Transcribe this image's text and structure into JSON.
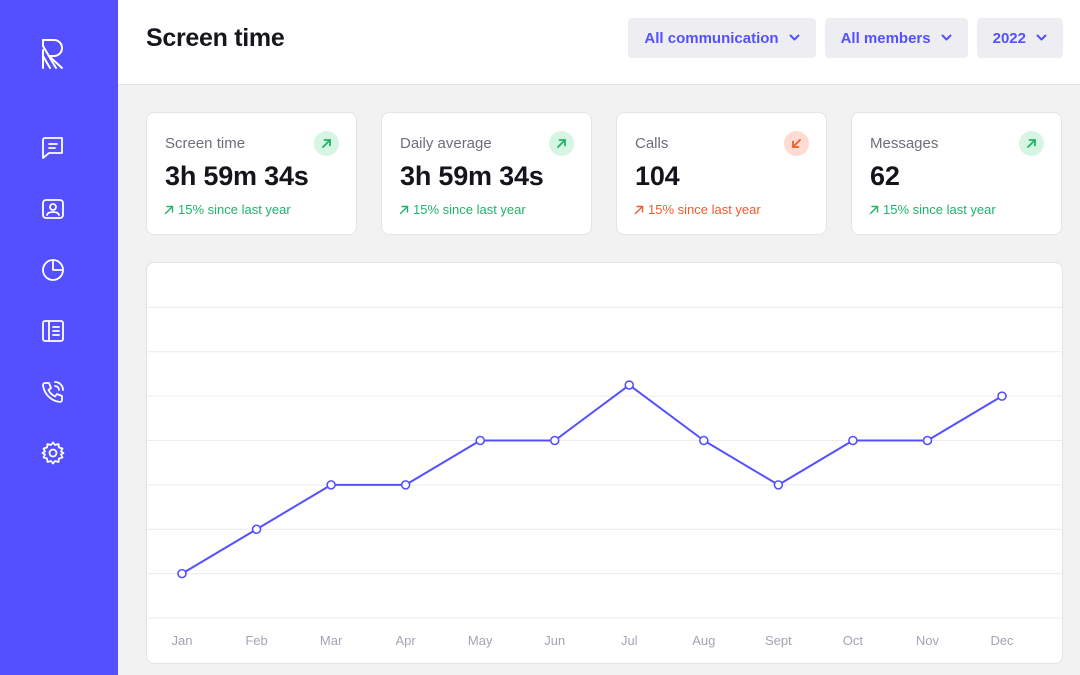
{
  "app": {
    "brand_icon": "brand-r-logo-icon"
  },
  "sidebar": {
    "items": [
      {
        "name": "messages",
        "icon": "message-icon"
      },
      {
        "name": "contacts",
        "icon": "contact-card-icon"
      },
      {
        "name": "reports",
        "icon": "pie-chart-icon"
      },
      {
        "name": "news",
        "icon": "newspaper-icon"
      },
      {
        "name": "calls",
        "icon": "phone-call-icon"
      },
      {
        "name": "settings",
        "icon": "gear-icon"
      }
    ]
  },
  "header": {
    "title": "Screen time",
    "filters": [
      {
        "label": "All communication",
        "icon": "chevron-down-icon"
      },
      {
        "label": "All members",
        "icon": "chevron-down-icon"
      },
      {
        "label": "2022",
        "icon": "chevron-down-icon"
      }
    ]
  },
  "stats": [
    {
      "label": "Screen time",
      "value": "3h 59m 34s",
      "trend": "15% since last year",
      "direction": "up",
      "color": "#22b26a"
    },
    {
      "label": "Daily average",
      "value": "3h 59m 34s",
      "trend": "15% since last year",
      "direction": "up",
      "color": "#22b26a"
    },
    {
      "label": "Calls",
      "value": "104",
      "trend": "15% since last year",
      "direction": "down",
      "color": "#f25c2a"
    },
    {
      "label": "Messages",
      "value": "62",
      "trend": "15% since last year",
      "direction": "up",
      "color": "#22b26a"
    }
  ],
  "colors": {
    "accent": "#5550ff",
    "up": "#22b26a",
    "down": "#f25c2a"
  },
  "chart_data": {
    "type": "line",
    "categories": [
      "Jan",
      "Feb",
      "Mar",
      "Apr",
      "May",
      "Jun",
      "Jul",
      "Aug",
      "Sept",
      "Oct",
      "Nov",
      "Dec"
    ],
    "values": [
      1,
      2,
      3,
      3,
      4,
      4,
      5.25,
      4,
      3,
      4,
      4,
      5
    ],
    "ylim": [
      0,
      8
    ],
    "grid": true,
    "color": "#5550ff"
  }
}
